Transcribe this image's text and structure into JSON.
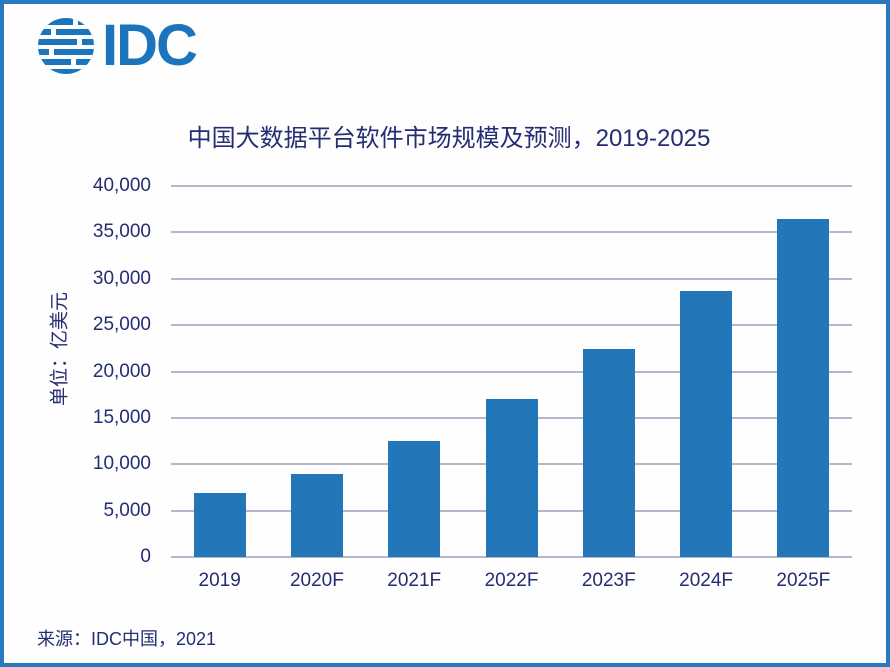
{
  "logo": {
    "text": "IDC",
    "icon": "striped-globe-icon",
    "color": "#1C75BC"
  },
  "colors": {
    "bar": "#2377B9",
    "frame": "#2979BD",
    "gridline": "#B3B6CC",
    "text": "#252D73",
    "logo": "#1C75BC"
  },
  "chart_data": {
    "type": "bar",
    "title": "中国大数据平台软件市场规模及预测，2019-2025",
    "categories": [
      "2019",
      "2020F",
      "2021F",
      "2022F",
      "2023F",
      "2024F",
      "2025F"
    ],
    "values": [
      6900,
      9000,
      12500,
      17000,
      22400,
      28700,
      36400
    ],
    "xlabel": "",
    "ylabel": "单位：亿美元",
    "ylim": [
      0,
      40000
    ],
    "ytick_step": 5000,
    "ytick_labels": [
      "0",
      "5,000",
      "10,000",
      "15,000",
      "20,000",
      "25,000",
      "30,000",
      "35,000",
      "40,000"
    ],
    "grid": "horizontal",
    "legend_position": "none",
    "bar_color": "#2377B9"
  },
  "source": "来源：IDC中国，2021"
}
